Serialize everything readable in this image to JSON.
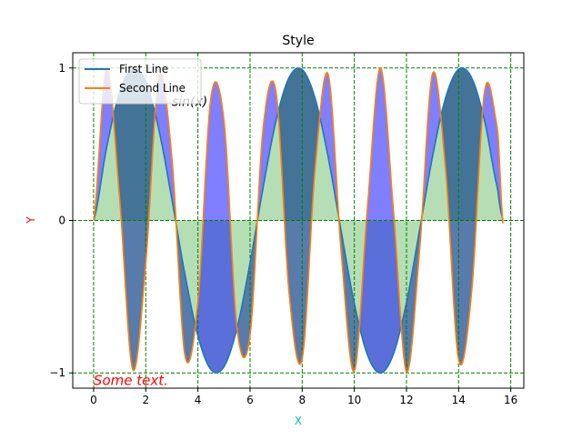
{
  "chart_data": {
    "type": "line",
    "title": "Style",
    "xlabel": "X",
    "ylabel": "Y",
    "xlim": [
      -0.8,
      16.5
    ],
    "ylim": [
      -1.1,
      1.1
    ],
    "xticks": [
      0,
      2,
      4,
      6,
      8,
      10,
      12,
      14,
      16
    ],
    "xtick_labels": [
      "0",
      "2",
      "4",
      "6",
      "8",
      "10",
      "12",
      "14",
      "16"
    ],
    "yticks": [
      -1,
      0,
      1
    ],
    "ytick_labels": [
      "−1",
      "0",
      "1"
    ],
    "grid": true,
    "legend_position": "top-left",
    "series": [
      {
        "name": "First Line",
        "x": [
          0,
          0.5,
          1,
          1.5,
          2,
          2.5,
          3,
          3.5,
          4,
          4.5,
          5,
          5.5,
          6,
          6.5,
          7,
          7.5,
          8,
          8.5,
          9,
          9.5,
          10,
          10.5,
          11,
          11.5,
          12,
          12.5,
          13,
          13.5,
          14,
          14.5,
          15,
          15.5,
          15.7
        ],
        "y": [
          0,
          0.479,
          0.841,
          0.997,
          0.909,
          0.598,
          0.141,
          -0.351,
          -0.757,
          -0.978,
          -0.959,
          -0.706,
          -0.279,
          0.215,
          0.657,
          0.938,
          0.989,
          0.798,
          0.412,
          -0.075,
          -0.544,
          -0.88,
          -1.0,
          -0.875,
          -0.537,
          -0.066,
          0.42,
          0.804,
          0.991,
          0.935,
          0.65,
          0.206,
          0.007
        ],
        "color": "#1f77b4"
      },
      {
        "name": "Second Line",
        "x": [
          0,
          0.5,
          1,
          1.5,
          2,
          2.5,
          3,
          3.5,
          4,
          4.5,
          5,
          5.5,
          6,
          6.5,
          7,
          7.5,
          8,
          8.5,
          9,
          9.5,
          10,
          10.5,
          11,
          11.5,
          12,
          12.5,
          13,
          13.5,
          14,
          14.5,
          15,
          15.5,
          15.7
        ],
        "y": [
          0,
          0.997,
          0.141,
          -0.977,
          -0.279,
          0.938,
          0.412,
          -0.88,
          -0.537,
          0.804,
          0.65,
          -0.707,
          -0.751,
          0.599,
          0.837,
          -0.478,
          -0.906,
          0.349,
          0.956,
          -0.213,
          -0.988,
          0.075,
          1.0,
          0.062,
          -0.992,
          -0.198,
          0.962,
          0.335,
          -0.914,
          -0.465,
          0.851,
          0.587,
          -0.02
        ],
        "color": "#ff7f0e"
      }
    ],
    "fills": [
      {
        "between": [
          "First Line",
          "Second Line"
        ],
        "where": "First Line >= Second Line",
        "color": "#1f4f8f",
        "opacity": 0.75
      },
      {
        "between": [
          "First Line",
          "Second Line"
        ],
        "where": "First Line < Second Line",
        "color": "#0000ff",
        "opacity": 0.5
      },
      {
        "between": [
          "First Line",
          "zero"
        ],
        "color": "#2ca02c",
        "opacity": 0.35
      }
    ],
    "annotations": [
      {
        "text": "sin(x)",
        "x": 3.0,
        "y": 0.75,
        "style": "italic",
        "color": "#000000"
      },
      {
        "text": "Some text.",
        "x": 0.0,
        "y": -1.08,
        "style": "italic",
        "color": "#ff0000"
      }
    ],
    "colors": {
      "grid": "#008000",
      "xlabel": "#00bfbf",
      "ylabel": "#ff0000",
      "axes": "#000000"
    }
  }
}
